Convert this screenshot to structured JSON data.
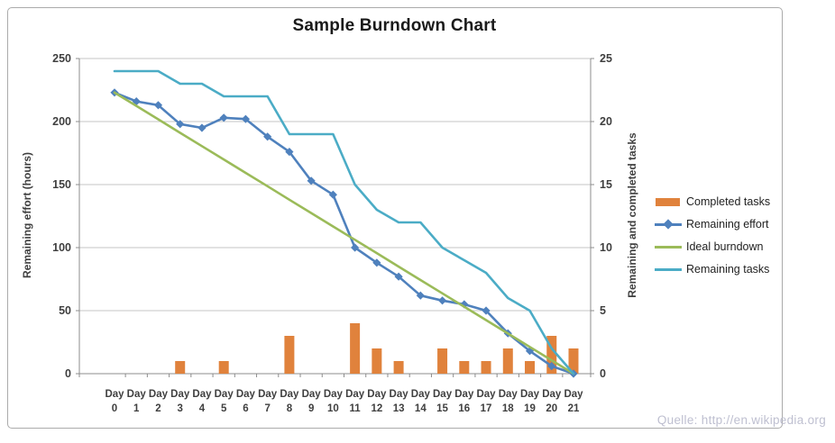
{
  "watermark": "Quelle: http://en.wikipedia.org",
  "chart_data": {
    "type": "bar+line combo",
    "title": "Sample Burndown Chart",
    "categories": [
      "Day 0",
      "Day 1",
      "Day 2",
      "Day 3",
      "Day 4",
      "Day 5",
      "Day 6",
      "Day 7",
      "Day 8",
      "Day 9",
      "Day 10",
      "Day 11",
      "Day 12",
      "Day 13",
      "Day 14",
      "Day 15",
      "Day 16",
      "Day 17",
      "Day 18",
      "Day 19",
      "Day 20",
      "Day 21"
    ],
    "left_axis": {
      "title": "Remaining effort (hours)",
      "min": 0,
      "max": 250,
      "step": 50,
      "tick_labels": [
        "250",
        "200",
        "150",
        "100",
        "50",
        "0"
      ]
    },
    "right_axis": {
      "title": "Remaining and completed tasks",
      "min": 0,
      "max": 25,
      "step": 5,
      "tick_labels": [
        "25",
        "20",
        "15",
        "10",
        "5",
        "0"
      ]
    },
    "grid": true,
    "legend_position": "right",
    "series": [
      {
        "name": "Completed tasks",
        "type": "bar",
        "axis": "right",
        "color": "#e0823c",
        "values": [
          0,
          0,
          0,
          1,
          0,
          1,
          0,
          0,
          3,
          0,
          0,
          4,
          2,
          1,
          0,
          2,
          1,
          1,
          2,
          1,
          3,
          2
        ]
      },
      {
        "name": "Remaining effort",
        "type": "line",
        "marker": "diamond",
        "axis": "left",
        "color": "#4f81bd",
        "values": [
          223,
          216,
          213,
          198,
          195,
          203,
          202,
          188,
          176,
          153,
          142,
          100,
          88,
          77,
          62,
          58,
          55,
          50,
          32,
          18,
          6,
          0
        ]
      },
      {
        "name": "Ideal burndown",
        "type": "line",
        "marker": "none",
        "axis": "left",
        "color": "#9bbb59",
        "values": [
          223,
          212.4,
          201.8,
          191.1,
          180.5,
          169.9,
          159.3,
          148.7,
          138,
          127.4,
          116.8,
          106.2,
          95.6,
          84.9,
          74.3,
          63.7,
          53.1,
          42.5,
          31.9,
          21.2,
          10.6,
          0
        ]
      },
      {
        "name": "Remaining tasks",
        "type": "line",
        "marker": "none",
        "axis": "right",
        "color": "#4bacc6",
        "values": [
          24,
          24,
          24,
          23,
          23,
          22,
          22,
          22,
          19,
          19,
          19,
          15,
          13,
          12,
          12,
          10,
          9,
          8,
          6,
          5,
          2,
          0
        ]
      }
    ],
    "colors": {
      "gridline": "#c6c6c6",
      "axis_line": "#8c8c8c",
      "tick_text": "#3f3f3f",
      "title_text": "#1a1a1a",
      "legend_text": "#1f1f1f",
      "watermark_text": "#bebfd0",
      "frame_border": "#ababab"
    }
  }
}
